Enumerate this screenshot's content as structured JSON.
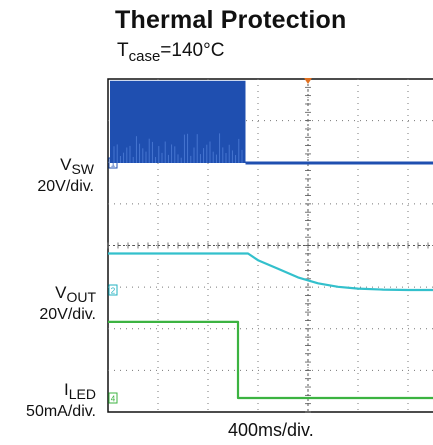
{
  "chart_data": {
    "type": "line",
    "title": "Thermal Protection",
    "subtitle": {
      "base": "T",
      "sub": "case",
      "rest": "=140°C"
    },
    "xlabel": "400ms/div.",
    "x_unit": "div",
    "xlim": [
      -4,
      4
    ],
    "grid": true,
    "trigger_marker_color": "#e07020",
    "channels": [
      {
        "name_base": "V",
        "name_sub": "SW",
        "scale": "20V/div.",
        "marker": "1",
        "color": "#1f4fb0",
        "marker_color": "#1f4fb0",
        "description": "switching burst (pulses) until protection trips",
        "x": [
          -4.0,
          -1.25,
          -1.25,
          4.0
        ],
        "y_div": [
          4.05,
          4.05,
          0.0,
          0.0
        ],
        "burst_end_div": -1.25
      },
      {
        "name_base": "V",
        "name_sub": "OUT",
        "scale": "20V/div.",
        "marker": "2",
        "color": "#33c0cc",
        "marker_color": "#20b0c0",
        "x": [
          -4.0,
          -1.2,
          -1.0,
          -0.6,
          -0.2,
          0.2,
          0.6,
          1.0,
          1.5,
          2.0,
          4.0
        ],
        "y_div": [
          1.8,
          1.8,
          1.47,
          1.05,
          0.62,
          0.33,
          0.16,
          0.07,
          0.02,
          0.0,
          0.0
        ]
      },
      {
        "name_base": "I",
        "name_sub": "LED",
        "scale": "50mA/div.",
        "marker": "4",
        "color": "#3cb341",
        "marker_color": "#3cb341",
        "x": [
          -4.0,
          -1.4,
          -1.4,
          4.0
        ],
        "y_div": [
          3.75,
          3.75,
          0.0,
          0.0
        ]
      }
    ]
  }
}
